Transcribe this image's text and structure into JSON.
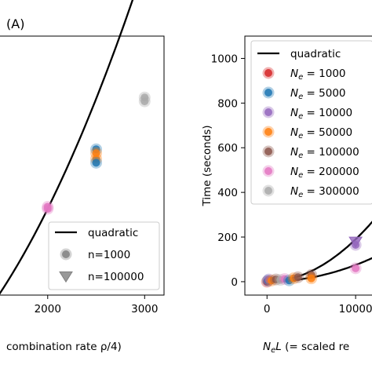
{
  "panel_label": "(A)",
  "chart_data": [
    {
      "type": "scatter",
      "title": "",
      "xlabel": "combination rate ρ/4)",
      "ylabel": "",
      "xlim": [
        1500,
        3200
      ],
      "ylim": [
        -150,
        1200
      ],
      "xticks": [
        2000,
        3000
      ],
      "tick_labels": [
        "2000",
        "3000"
      ],
      "grid": false,
      "legend_position": "bottom-right",
      "legend": [
        {
          "label": "quadratic",
          "marker": "line",
          "color": "#000000"
        },
        {
          "label": "n=1000",
          "marker": "circle",
          "color": "#808080"
        },
        {
          "label": "n=100000",
          "marker": "triangle-down",
          "color": "#808080"
        }
      ],
      "fit_curve": {
        "name": "quadratic",
        "x_from": 1500,
        "x_to": 3150,
        "a": 0.000255,
        "x0": 0,
        "y0": 0,
        "offset": 0
      },
      "points": [
        {
          "x": 2000,
          "y": 310,
          "color": "#e377c2"
        },
        {
          "x": 2000,
          "y": 300,
          "color": "#e377c2"
        },
        {
          "x": 2500,
          "y": 610,
          "color": "#1f77b4"
        },
        {
          "x": 2500,
          "y": 590,
          "color": "#ff7f0e"
        },
        {
          "x": 2500,
          "y": 560,
          "color": "#ff7f0e"
        },
        {
          "x": 2500,
          "y": 540,
          "color": "#1f77b4"
        },
        {
          "x": 3000,
          "y": 880,
          "color": "#aaaaaa"
        },
        {
          "x": 3000,
          "y": 860,
          "color": "#aaaaaa"
        }
      ]
    },
    {
      "type": "scatter",
      "title": "",
      "xlabel": "NₑL (= scaled re",
      "ylabel": "Time (seconds)",
      "xlim": [
        -2500,
        13000
      ],
      "ylim": [
        -60,
        1100
      ],
      "xticks": [
        0,
        10000
      ],
      "tick_labels_x": [
        "0",
        "10000"
      ],
      "yticks": [
        0,
        200,
        400,
        600,
        800,
        1000
      ],
      "tick_labels_y": [
        "0",
        "200",
        "400",
        "600",
        "800",
        "1000"
      ],
      "grid": false,
      "legend_position": "top-left",
      "legend": [
        {
          "label": "quadratic",
          "marker": "line",
          "color": "#000000"
        },
        {
          "prefix": "N",
          "sub": "e",
          "label": " = 1000",
          "color": "#d62728"
        },
        {
          "prefix": "N",
          "sub": "e",
          "label": " = 5000",
          "color": "#1f77b4"
        },
        {
          "prefix": "N",
          "sub": "e",
          "label": " = 10000",
          "color": "#9467bd"
        },
        {
          "prefix": "N",
          "sub": "e",
          "label": " = 50000",
          "color": "#ff7f0e"
        },
        {
          "prefix": "N",
          "sub": "e",
          "label": " = 100000",
          "color": "#8c564b"
        },
        {
          "prefix": "N",
          "sub": "e",
          "label": " = 200000",
          "color": "#e377c2"
        },
        {
          "prefix": "N",
          "sub": "e",
          "label": " = 300000",
          "color": "#aaaaaa"
        }
      ],
      "vline_x": 12000,
      "fit_curves": [
        {
          "a": 1.9e-06,
          "x0": 0,
          "y0": 0
        },
        {
          "a": 7.5e-07,
          "x0": 0,
          "y0": 0
        }
      ],
      "points": [
        {
          "x": 0,
          "y": 0,
          "color": "#d62728"
        },
        {
          "x": 100,
          "y": 5,
          "color": "#1f77b4"
        },
        {
          "x": 200,
          "y": 10,
          "color": "#9467bd"
        },
        {
          "x": 500,
          "y": 5,
          "color": "#ff7f0e"
        },
        {
          "x": 1000,
          "y": 10,
          "color": "#8c564b"
        },
        {
          "x": 1500,
          "y": 8,
          "color": "#aaaaaa"
        },
        {
          "x": 2000,
          "y": 12,
          "color": "#e377c2"
        },
        {
          "x": 2500,
          "y": 6,
          "color": "#1f77b4"
        },
        {
          "x": 3000,
          "y": 15,
          "color": "#ff7f0e"
        },
        {
          "x": 3500,
          "y": 20,
          "color": "#8c564b"
        },
        {
          "x": 5000,
          "y": 30,
          "color": "#8c564b"
        },
        {
          "x": 5000,
          "y": 15,
          "color": "#ff7f0e"
        },
        {
          "x": 10000,
          "y": 60,
          "color": "#e377c2"
        },
        {
          "x": 10000,
          "y": 165,
          "color": "#9467bd"
        },
        {
          "x": 10000,
          "y": 180,
          "color": "#9467bd",
          "marker": "triangle"
        }
      ]
    }
  ]
}
